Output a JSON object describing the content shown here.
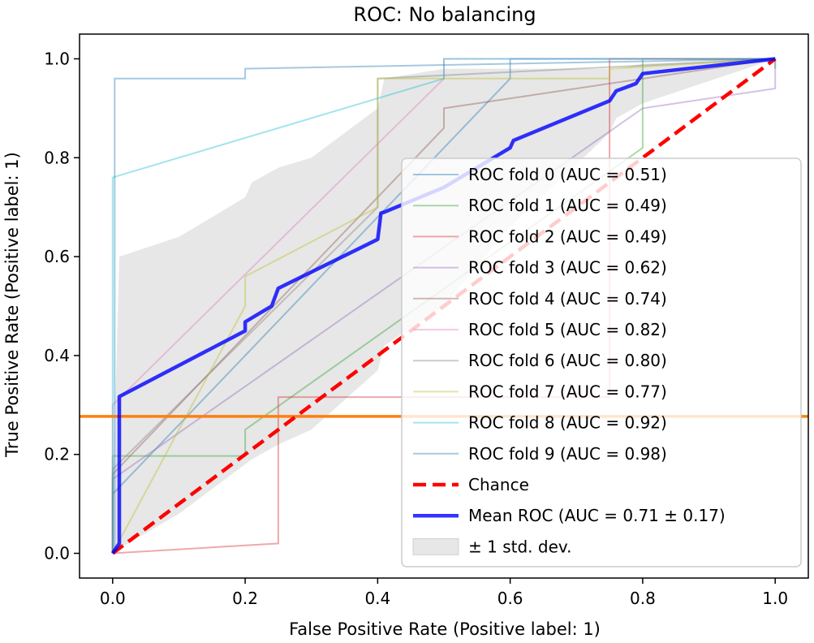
{
  "chart_data": {
    "type": "line",
    "title": "ROC: No balancing",
    "xlabel": "False Positive Rate (Positive label: 1)",
    "ylabel": "True Positive Rate (Positive label: 1)",
    "xlim": [
      -0.05,
      1.05
    ],
    "ylim": [
      -0.05,
      1.05
    ],
    "xticks": [
      0.0,
      0.2,
      0.4,
      0.6,
      0.8,
      1.0
    ],
    "yticks": [
      0.0,
      0.2,
      0.4,
      0.6,
      0.8,
      1.0
    ],
    "xtick_labels": [
      "0.0",
      "0.2",
      "0.4",
      "0.6",
      "0.8",
      "1.0"
    ],
    "ytick_labels": [
      "0.0",
      "0.2",
      "0.4",
      "0.6",
      "0.8",
      "1.0"
    ],
    "grid": false,
    "legend_position": "lower-right",
    "series": [
      {
        "name": "ROC fold 0 (AUC = 0.51)",
        "color": "#1f77b4",
        "x": [
          0,
          0,
          0.6,
          0.6,
          1.0
        ],
        "y": [
          0,
          0.12,
          0.96,
          1.0,
          1.0
        ]
      },
      {
        "name": "ROC fold 1 (AUC = 0.49)",
        "color": "#2ca02c",
        "x": [
          0,
          0,
          0.2,
          0.2,
          0.8,
          0.8,
          1.0,
          1.0
        ],
        "y": [
          0,
          0.197,
          0.197,
          0.25,
          0.82,
          1.0,
          1.0,
          0.98
        ]
      },
      {
        "name": "ROC fold 2 (AUC = 0.49)",
        "color": "#d62728",
        "x": [
          0,
          0.25,
          0.25,
          0.75,
          0.75,
          1.0
        ],
        "y": [
          0,
          0.02,
          0.316,
          0.316,
          1.0,
          1.0
        ]
      },
      {
        "name": "ROC fold 3 (AUC = 0.62)",
        "color": "#9467bd",
        "x": [
          0,
          0,
          0.8,
          1.0,
          1.0
        ],
        "y": [
          0,
          0.15,
          0.9,
          0.94,
          1.0
        ]
      },
      {
        "name": "ROC fold 4 (AUC = 0.74)",
        "color": "#8c564b",
        "x": [
          0,
          0,
          0.5,
          0.5,
          1.0
        ],
        "y": [
          0,
          0.16,
          0.86,
          0.9,
          1.0
        ]
      },
      {
        "name": "ROC fold 5 (AUC = 0.82)",
        "color": "#e377c2",
        "x": [
          0,
          0,
          0.5,
          0.5,
          1.0
        ],
        "y": [
          0,
          0.3,
          0.96,
          1.0,
          1.0
        ]
      },
      {
        "name": "ROC fold 6 (AUC = 0.80)",
        "color": "#7f7f7f",
        "x": [
          0,
          0,
          0.4,
          0.4,
          1.0
        ],
        "y": [
          0,
          0.17,
          0.7,
          0.96,
          1.0
        ]
      },
      {
        "name": "ROC fold 7 (AUC = 0.77)",
        "color": "#bcbd22",
        "x": [
          0,
          0.2,
          0.2,
          0.4,
          0.4,
          0.75,
          0.75,
          1.0
        ],
        "y": [
          0,
          0.5,
          0.56,
          0.7,
          0.96,
          0.96,
          0.98,
          1.0
        ]
      },
      {
        "name": "ROC fold 8 (AUC = 0.92)",
        "color": "#17becf",
        "x": [
          0,
          0,
          0.5,
          0.5,
          1.0
        ],
        "y": [
          0,
          0.76,
          0.96,
          1.0,
          1.0
        ]
      },
      {
        "name": "ROC fold 9 (AUC = 0.98)",
        "color": "#1f77b4",
        "x": [
          0,
          0.003,
          0.003,
          0.2,
          0.2,
          1.0
        ],
        "y": [
          0,
          0,
          0.96,
          0.96,
          0.98,
          1.0
        ]
      },
      {
        "name": "Chance",
        "color": "#ff0000",
        "dashed": true,
        "x": [
          0,
          1
        ],
        "y": [
          0,
          1
        ]
      },
      {
        "name": "Mean ROC (AUC = 0.71 ± 0.17)",
        "color": "#0000ff",
        "x": [
          0,
          0.01,
          0.01,
          0.2,
          0.2,
          0.24,
          0.25,
          0.4,
          0.405,
          0.41,
          0.5,
          0.6,
          0.605,
          0.75,
          0.76,
          0.78,
          0.79,
          0.8,
          1.0
        ],
        "y": [
          0,
          0.02,
          0.317,
          0.45,
          0.468,
          0.5,
          0.536,
          0.635,
          0.688,
          0.69,
          0.74,
          0.82,
          0.835,
          0.915,
          0.935,
          0.945,
          0.95,
          0.97,
          1.0
        ]
      },
      {
        "name": "± 1 std. dev.",
        "color": "#bbbbbb",
        "band": true,
        "x": [
          0,
          0.01,
          0.1,
          0.2,
          0.21,
          0.25,
          0.3,
          0.4,
          0.41,
          0.5,
          0.6,
          0.75,
          0.76,
          0.8,
          1.0
        ],
        "upper": [
          0.1,
          0.6,
          0.64,
          0.72,
          0.75,
          0.78,
          0.8,
          0.9,
          0.96,
          0.98,
          0.98,
          0.98,
          0.98,
          0.99,
          1.0
        ],
        "lower": [
          0,
          0.01,
          0.08,
          0.18,
          0.19,
          0.22,
          0.25,
          0.37,
          0.42,
          0.5,
          0.66,
          0.85,
          0.88,
          0.91,
          1.0
        ]
      }
    ],
    "horizontal_line": {
      "y": 0.277,
      "color": "#ff7f0e"
    }
  }
}
